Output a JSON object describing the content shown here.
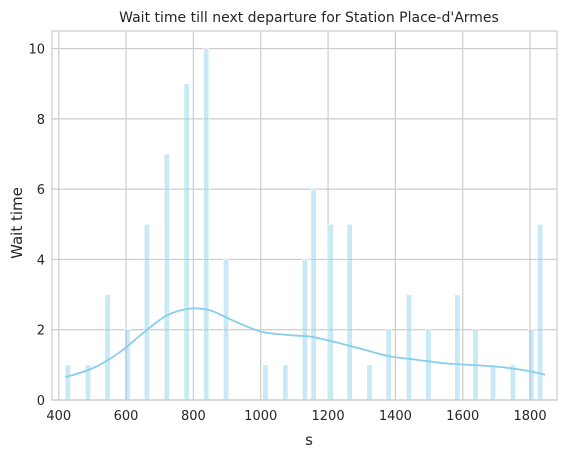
{
  "chart_data": {
    "type": "bar",
    "title": "Wait time till next departure for Station Place-d'Armes",
    "xlabel": "s",
    "ylabel": "Wait time",
    "xlim": [
      380,
      1880
    ],
    "ylim": [
      0,
      10.5
    ],
    "xticks": [
      400,
      600,
      800,
      1000,
      1200,
      1400,
      1600,
      1800
    ],
    "yticks": [
      0,
      2,
      4,
      6,
      8,
      10
    ],
    "grid": true,
    "bar_color": "#87ceeb",
    "bar_alpha": 0.45,
    "kde_color": "#87ceeb",
    "bin_width": 16,
    "bins": [
      {
        "x": 427,
        "value": 1
      },
      {
        "x": 487,
        "value": 1
      },
      {
        "x": 545,
        "value": 3
      },
      {
        "x": 604,
        "value": 2
      },
      {
        "x": 662,
        "value": 5
      },
      {
        "x": 721,
        "value": 7
      },
      {
        "x": 780,
        "value": 9
      },
      {
        "x": 838,
        "value": 10
      },
      {
        "x": 897,
        "value": 4
      },
      {
        "x": 955,
        "value": 0
      },
      {
        "x": 1014,
        "value": 1
      },
      {
        "x": 1073,
        "value": 1
      },
      {
        "x": 1131,
        "value": 4
      },
      {
        "x": 1157,
        "value": 6
      },
      {
        "x": 1208,
        "value": 5
      },
      {
        "x": 1264,
        "value": 5
      },
      {
        "x": 1323,
        "value": 1
      },
      {
        "x": 1380,
        "value": 2
      },
      {
        "x": 1440,
        "value": 3
      },
      {
        "x": 1498,
        "value": 2
      },
      {
        "x": 1557,
        "value": 0
      },
      {
        "x": 1584,
        "value": 3
      },
      {
        "x": 1638,
        "value": 2
      },
      {
        "x": 1690,
        "value": 1
      },
      {
        "x": 1749,
        "value": 1
      },
      {
        "x": 1804,
        "value": 2
      },
      {
        "x": 1830,
        "value": 5
      }
    ],
    "kde_curve": [
      {
        "x": 420,
        "y": 0.65
      },
      {
        "x": 500,
        "y": 0.9
      },
      {
        "x": 580,
        "y": 1.35
      },
      {
        "x": 650,
        "y": 1.9
      },
      {
        "x": 720,
        "y": 2.4
      },
      {
        "x": 790,
        "y": 2.6
      },
      {
        "x": 850,
        "y": 2.55
      },
      {
        "x": 920,
        "y": 2.25
      },
      {
        "x": 1000,
        "y": 1.95
      },
      {
        "x": 1080,
        "y": 1.85
      },
      {
        "x": 1150,
        "y": 1.8
      },
      {
        "x": 1220,
        "y": 1.65
      },
      {
        "x": 1300,
        "y": 1.45
      },
      {
        "x": 1380,
        "y": 1.25
      },
      {
        "x": 1460,
        "y": 1.15
      },
      {
        "x": 1540,
        "y": 1.05
      },
      {
        "x": 1620,
        "y": 1.0
      },
      {
        "x": 1700,
        "y": 0.95
      },
      {
        "x": 1780,
        "y": 0.85
      },
      {
        "x": 1845,
        "y": 0.72
      }
    ]
  }
}
